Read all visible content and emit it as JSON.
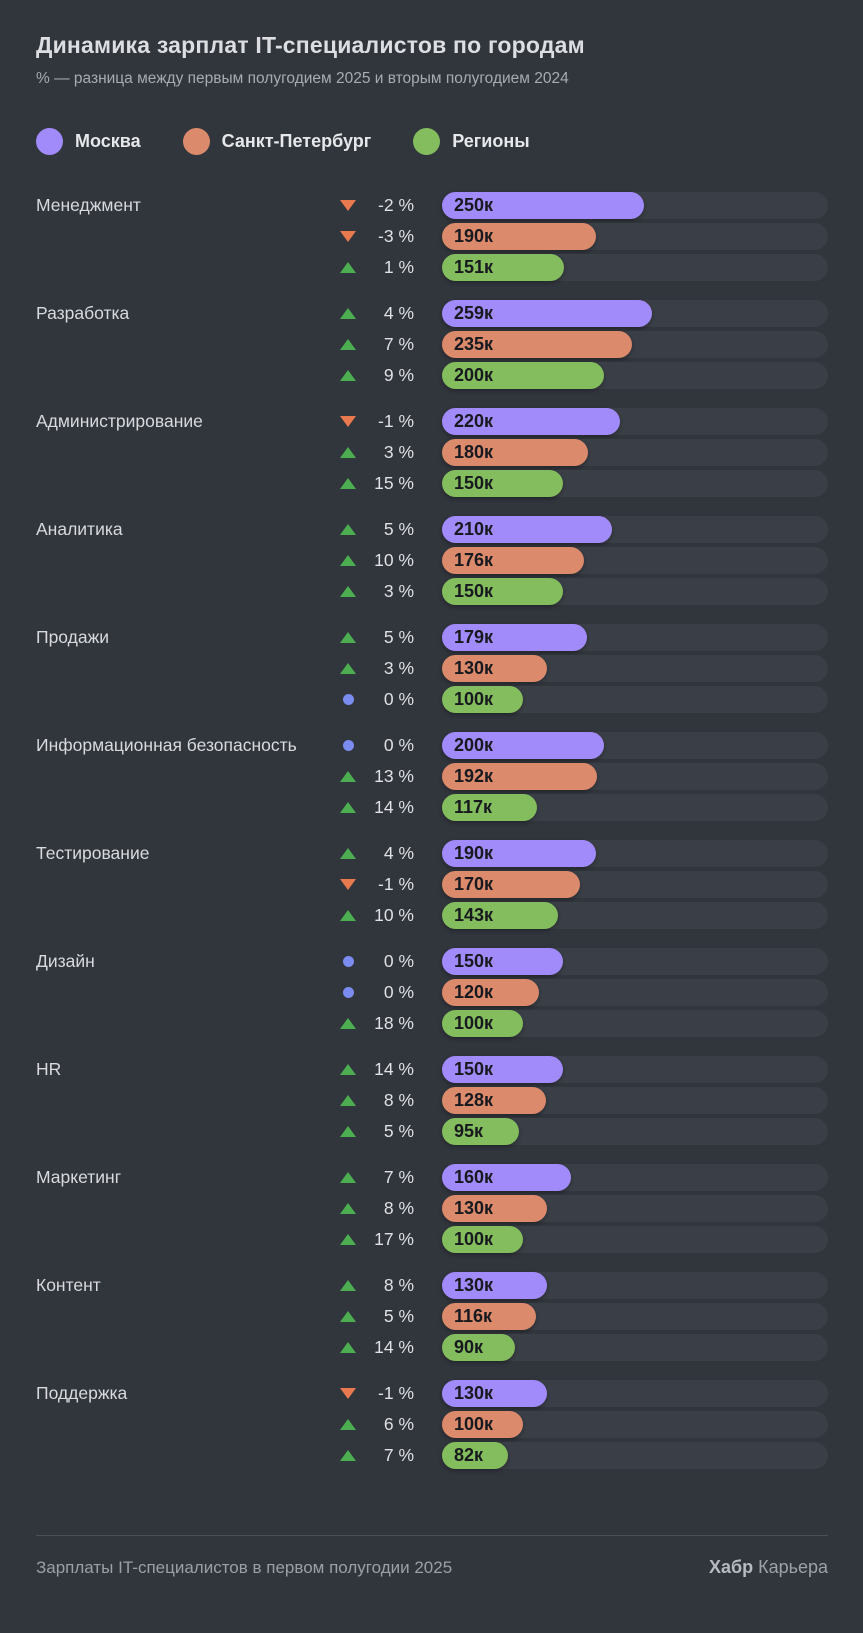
{
  "header": {
    "title": "Динамика зарплат IT-специалистов по городам",
    "subtitle": "% — разница между первым полугодием 2025 и вторым полугодием 2024"
  },
  "colors": {
    "moscow": "#a18bfa",
    "spb": "#db8a6c",
    "regions": "#83bd5d",
    "up_triangle": "#4cae50",
    "down_triangle": "#e9794f",
    "zero_dot": "#7b8cf0",
    "background": "#31353c",
    "track": "#3a3e46"
  },
  "legend": {
    "items": [
      {
        "label": "Москва",
        "color": "#a18bfa"
      },
      {
        "label": "Санкт-Петербург",
        "color": "#db8a6c"
      },
      {
        "label": "Регионы",
        "color": "#83bd5d"
      }
    ]
  },
  "chart_data": {
    "type": "bar",
    "title": "Динамика зарплат IT-специалистов по городам",
    "series_names": [
      "Москва",
      "Санкт-Петербург",
      "Регионы"
    ],
    "value_unit": "к",
    "axis_max": 477,
    "groups": [
      {
        "category": "Менеджмент",
        "bars": [
          {
            "city": "Москва",
            "change": "-2 %",
            "direction": "down",
            "value": 250,
            "label": "250к"
          },
          {
            "city": "Санкт-Петербург",
            "change": "-3 %",
            "direction": "down",
            "value": 190,
            "label": "190к"
          },
          {
            "city": "Регионы",
            "change": "1 %",
            "direction": "up",
            "value": 151,
            "label": "151к"
          }
        ]
      },
      {
        "category": "Разработка",
        "bars": [
          {
            "city": "Москва",
            "change": "4 %",
            "direction": "up",
            "value": 259,
            "label": "259к"
          },
          {
            "city": "Санкт-Петербург",
            "change": "7 %",
            "direction": "up",
            "value": 235,
            "label": "235к"
          },
          {
            "city": "Регионы",
            "change": "9 %",
            "direction": "up",
            "value": 200,
            "label": "200к"
          }
        ]
      },
      {
        "category": "Администрирование",
        "bars": [
          {
            "city": "Москва",
            "change": "-1 %",
            "direction": "down",
            "value": 220,
            "label": "220к"
          },
          {
            "city": "Санкт-Петербург",
            "change": "3 %",
            "direction": "up",
            "value": 180,
            "label": "180к"
          },
          {
            "city": "Регионы",
            "change": "15 %",
            "direction": "up",
            "value": 150,
            "label": "150к"
          }
        ]
      },
      {
        "category": "Аналитика",
        "bars": [
          {
            "city": "Москва",
            "change": "5 %",
            "direction": "up",
            "value": 210,
            "label": "210к"
          },
          {
            "city": "Санкт-Петербург",
            "change": "10 %",
            "direction": "up",
            "value": 176,
            "label": "176к"
          },
          {
            "city": "Регионы",
            "change": "3 %",
            "direction": "up",
            "value": 150,
            "label": "150к"
          }
        ]
      },
      {
        "category": "Продажи",
        "bars": [
          {
            "city": "Москва",
            "change": "5 %",
            "direction": "up",
            "value": 179,
            "label": "179к"
          },
          {
            "city": "Санкт-Петербург",
            "change": "3 %",
            "direction": "up",
            "value": 130,
            "label": "130к"
          },
          {
            "city": "Регионы",
            "change": "0 %",
            "direction": "zero",
            "value": 100,
            "label": "100к"
          }
        ]
      },
      {
        "category": "Информационная безопасность",
        "bars": [
          {
            "city": "Москва",
            "change": "0 %",
            "direction": "zero",
            "value": 200,
            "label": "200к"
          },
          {
            "city": "Санкт-Петербург",
            "change": "13 %",
            "direction": "up",
            "value": 192,
            "label": "192к"
          },
          {
            "city": "Регионы",
            "change": "14 %",
            "direction": "up",
            "value": 117,
            "label": "117к"
          }
        ]
      },
      {
        "category": "Тестирование",
        "bars": [
          {
            "city": "Москва",
            "change": "4 %",
            "direction": "up",
            "value": 190,
            "label": "190к"
          },
          {
            "city": "Санкт-Петербург",
            "change": "-1 %",
            "direction": "down",
            "value": 170,
            "label": "170к"
          },
          {
            "city": "Регионы",
            "change": "10 %",
            "direction": "up",
            "value": 143,
            "label": "143к"
          }
        ]
      },
      {
        "category": "Дизайн",
        "bars": [
          {
            "city": "Москва",
            "change": "0 %",
            "direction": "zero",
            "value": 150,
            "label": "150к"
          },
          {
            "city": "Санкт-Петербург",
            "change": "0 %",
            "direction": "zero",
            "value": 120,
            "label": "120к"
          },
          {
            "city": "Регионы",
            "change": "18 %",
            "direction": "up",
            "value": 100,
            "label": "100к"
          }
        ]
      },
      {
        "category": "HR",
        "bars": [
          {
            "city": "Москва",
            "change": "14 %",
            "direction": "up",
            "value": 150,
            "label": "150к"
          },
          {
            "city": "Санкт-Петербург",
            "change": "8 %",
            "direction": "up",
            "value": 128,
            "label": "128к"
          },
          {
            "city": "Регионы",
            "change": "5 %",
            "direction": "up",
            "value": 95,
            "label": "95к"
          }
        ]
      },
      {
        "category": "Маркетинг",
        "bars": [
          {
            "city": "Москва",
            "change": "7 %",
            "direction": "up",
            "value": 160,
            "label": "160к"
          },
          {
            "city": "Санкт-Петербург",
            "change": "8 %",
            "direction": "up",
            "value": 130,
            "label": "130к"
          },
          {
            "city": "Регионы",
            "change": "17 %",
            "direction": "up",
            "value": 100,
            "label": "100к"
          }
        ]
      },
      {
        "category": "Контент",
        "bars": [
          {
            "city": "Москва",
            "change": "8 %",
            "direction": "up",
            "value": 130,
            "label": "130к"
          },
          {
            "city": "Санкт-Петербург",
            "change": "5 %",
            "direction": "up",
            "value": 116,
            "label": "116к"
          },
          {
            "city": "Регионы",
            "change": "14 %",
            "direction": "up",
            "value": 90,
            "label": "90к"
          }
        ]
      },
      {
        "category": "Поддержка",
        "bars": [
          {
            "city": "Москва",
            "change": "-1 %",
            "direction": "down",
            "value": 130,
            "label": "130к"
          },
          {
            "city": "Санкт-Петербург",
            "change": "6 %",
            "direction": "up",
            "value": 100,
            "label": "100к"
          },
          {
            "city": "Регионы",
            "change": "7 %",
            "direction": "up",
            "value": 82,
            "label": "82к"
          }
        ]
      }
    ]
  },
  "footer": {
    "caption": "Зарплаты IT-специалистов в первом полугодии 2025",
    "brand_bold": "Хабр",
    "brand_regular": "Карьера"
  }
}
